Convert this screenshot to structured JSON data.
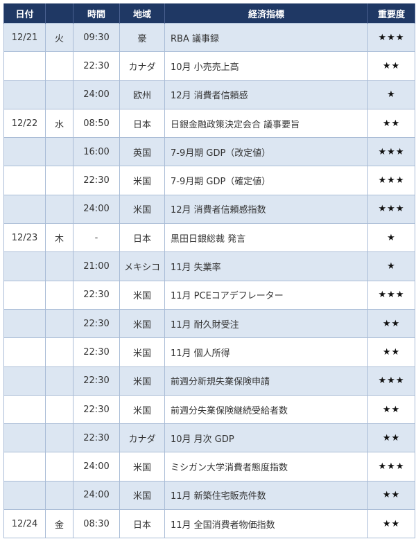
{
  "headers": {
    "date": "日付",
    "weekday": "",
    "time": "時間",
    "region": "地域",
    "indicator": "経済指標",
    "importance": "重要度"
  },
  "rows": [
    {
      "date": "12/21",
      "weekday": "火",
      "time": "09:30",
      "region": "豪",
      "indicator": "RBA 議事録",
      "importance": "★★★"
    },
    {
      "date": "",
      "weekday": "",
      "time": "22:30",
      "region": "カナダ",
      "indicator": "10月 小売売上高",
      "importance": "★★"
    },
    {
      "date": "",
      "weekday": "",
      "time": "24:00",
      "region": "欧州",
      "indicator": "12月 消費者信頼感",
      "importance": "★"
    },
    {
      "date": "12/22",
      "weekday": "水",
      "time": "08:50",
      "region": "日本",
      "indicator": "日銀金融政策決定会合 議事要旨",
      "importance": "★★"
    },
    {
      "date": "",
      "weekday": "",
      "time": "16:00",
      "region": "英国",
      "indicator": "7-9月期 GDP（改定値）",
      "importance": "★★★"
    },
    {
      "date": "",
      "weekday": "",
      "time": "22:30",
      "region": "米国",
      "indicator": "7-9月期 GDP（確定値）",
      "importance": "★★★"
    },
    {
      "date": "",
      "weekday": "",
      "time": "24:00",
      "region": "米国",
      "indicator": "12月 消費者信頼感指数",
      "importance": "★★★"
    },
    {
      "date": "12/23",
      "weekday": "木",
      "time": "-",
      "region": "日本",
      "indicator": "黒田日銀総裁 発言",
      "importance": "★"
    },
    {
      "date": "",
      "weekday": "",
      "time": "21:00",
      "region": "メキシコ",
      "indicator": "11月 失業率",
      "importance": "★"
    },
    {
      "date": "",
      "weekday": "",
      "time": "22:30",
      "region": "米国",
      "indicator": "11月 PCEコアデフレーター",
      "importance": "★★★"
    },
    {
      "date": "",
      "weekday": "",
      "time": "22:30",
      "region": "米国",
      "indicator": "11月 耐久財受注",
      "importance": "★★"
    },
    {
      "date": "",
      "weekday": "",
      "time": "22:30",
      "region": "米国",
      "indicator": "11月 個人所得",
      "importance": "★★"
    },
    {
      "date": "",
      "weekday": "",
      "time": "22:30",
      "region": "米国",
      "indicator": "前週分新規失業保険申請",
      "importance": "★★★"
    },
    {
      "date": "",
      "weekday": "",
      "time": "22:30",
      "region": "米国",
      "indicator": "前週分失業保険継続受給者数",
      "importance": "★★"
    },
    {
      "date": "",
      "weekday": "",
      "time": "22:30",
      "region": "カナダ",
      "indicator": "10月 月次 GDP",
      "importance": "★★"
    },
    {
      "date": "",
      "weekday": "",
      "time": "24:00",
      "region": "米国",
      "indicator": "ミシガン大学消費者態度指数",
      "importance": "★★★"
    },
    {
      "date": "",
      "weekday": "",
      "time": "24:00",
      "region": "米国",
      "indicator": "11月 新築住宅販売件数",
      "importance": "★★"
    },
    {
      "date": "12/24",
      "weekday": "金",
      "time": "08:30",
      "region": "日本",
      "indicator": "11月 全国消費者物価指数",
      "importance": "★★"
    }
  ]
}
